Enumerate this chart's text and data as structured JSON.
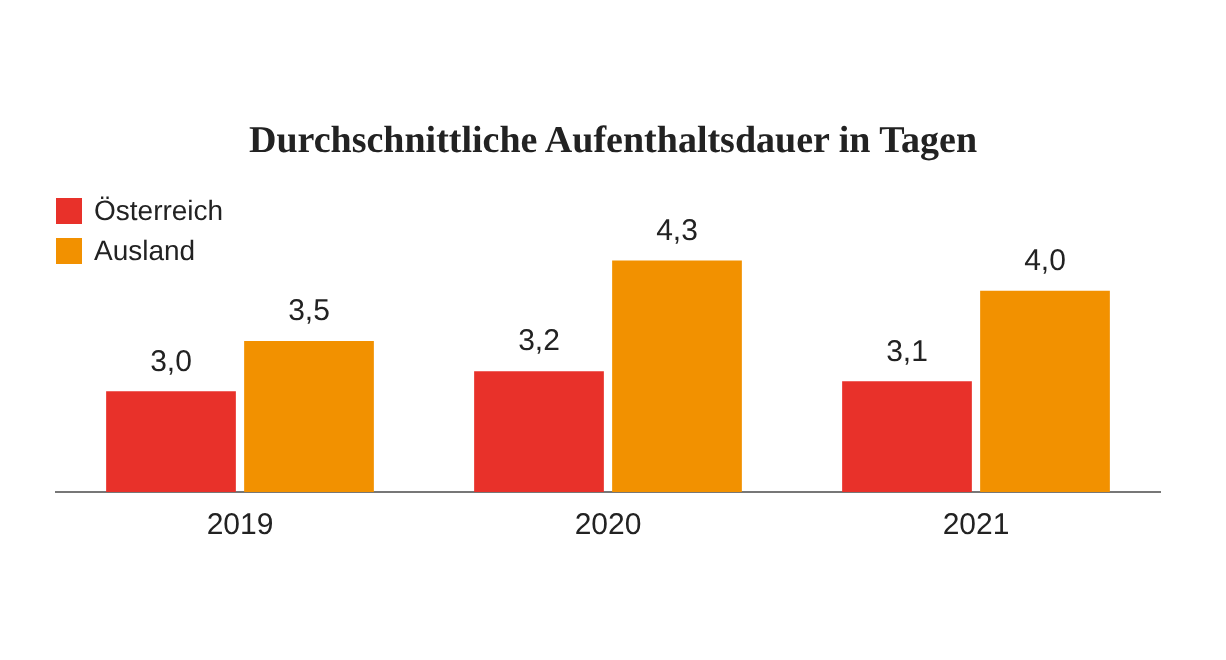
{
  "chart_data": {
    "type": "bar",
    "title": "Durchschnittliche Aufenthaltsdauer in Tagen",
    "categories": [
      "2019",
      "2020",
      "2021"
    ],
    "series": [
      {
        "name": "Österreich",
        "color": "#e8312a",
        "values": [
          3.0,
          3.2,
          3.1
        ],
        "value_labels": [
          "3,0",
          "3,2",
          "3,1"
        ]
      },
      {
        "name": "Ausland",
        "color": "#f29100",
        "values": [
          3.5,
          4.3,
          4.0
        ],
        "value_labels": [
          "3,5",
          "4,3",
          "4,0"
        ]
      }
    ],
    "ylim": [
      2,
      5
    ],
    "grid": false,
    "legend": "top left"
  }
}
